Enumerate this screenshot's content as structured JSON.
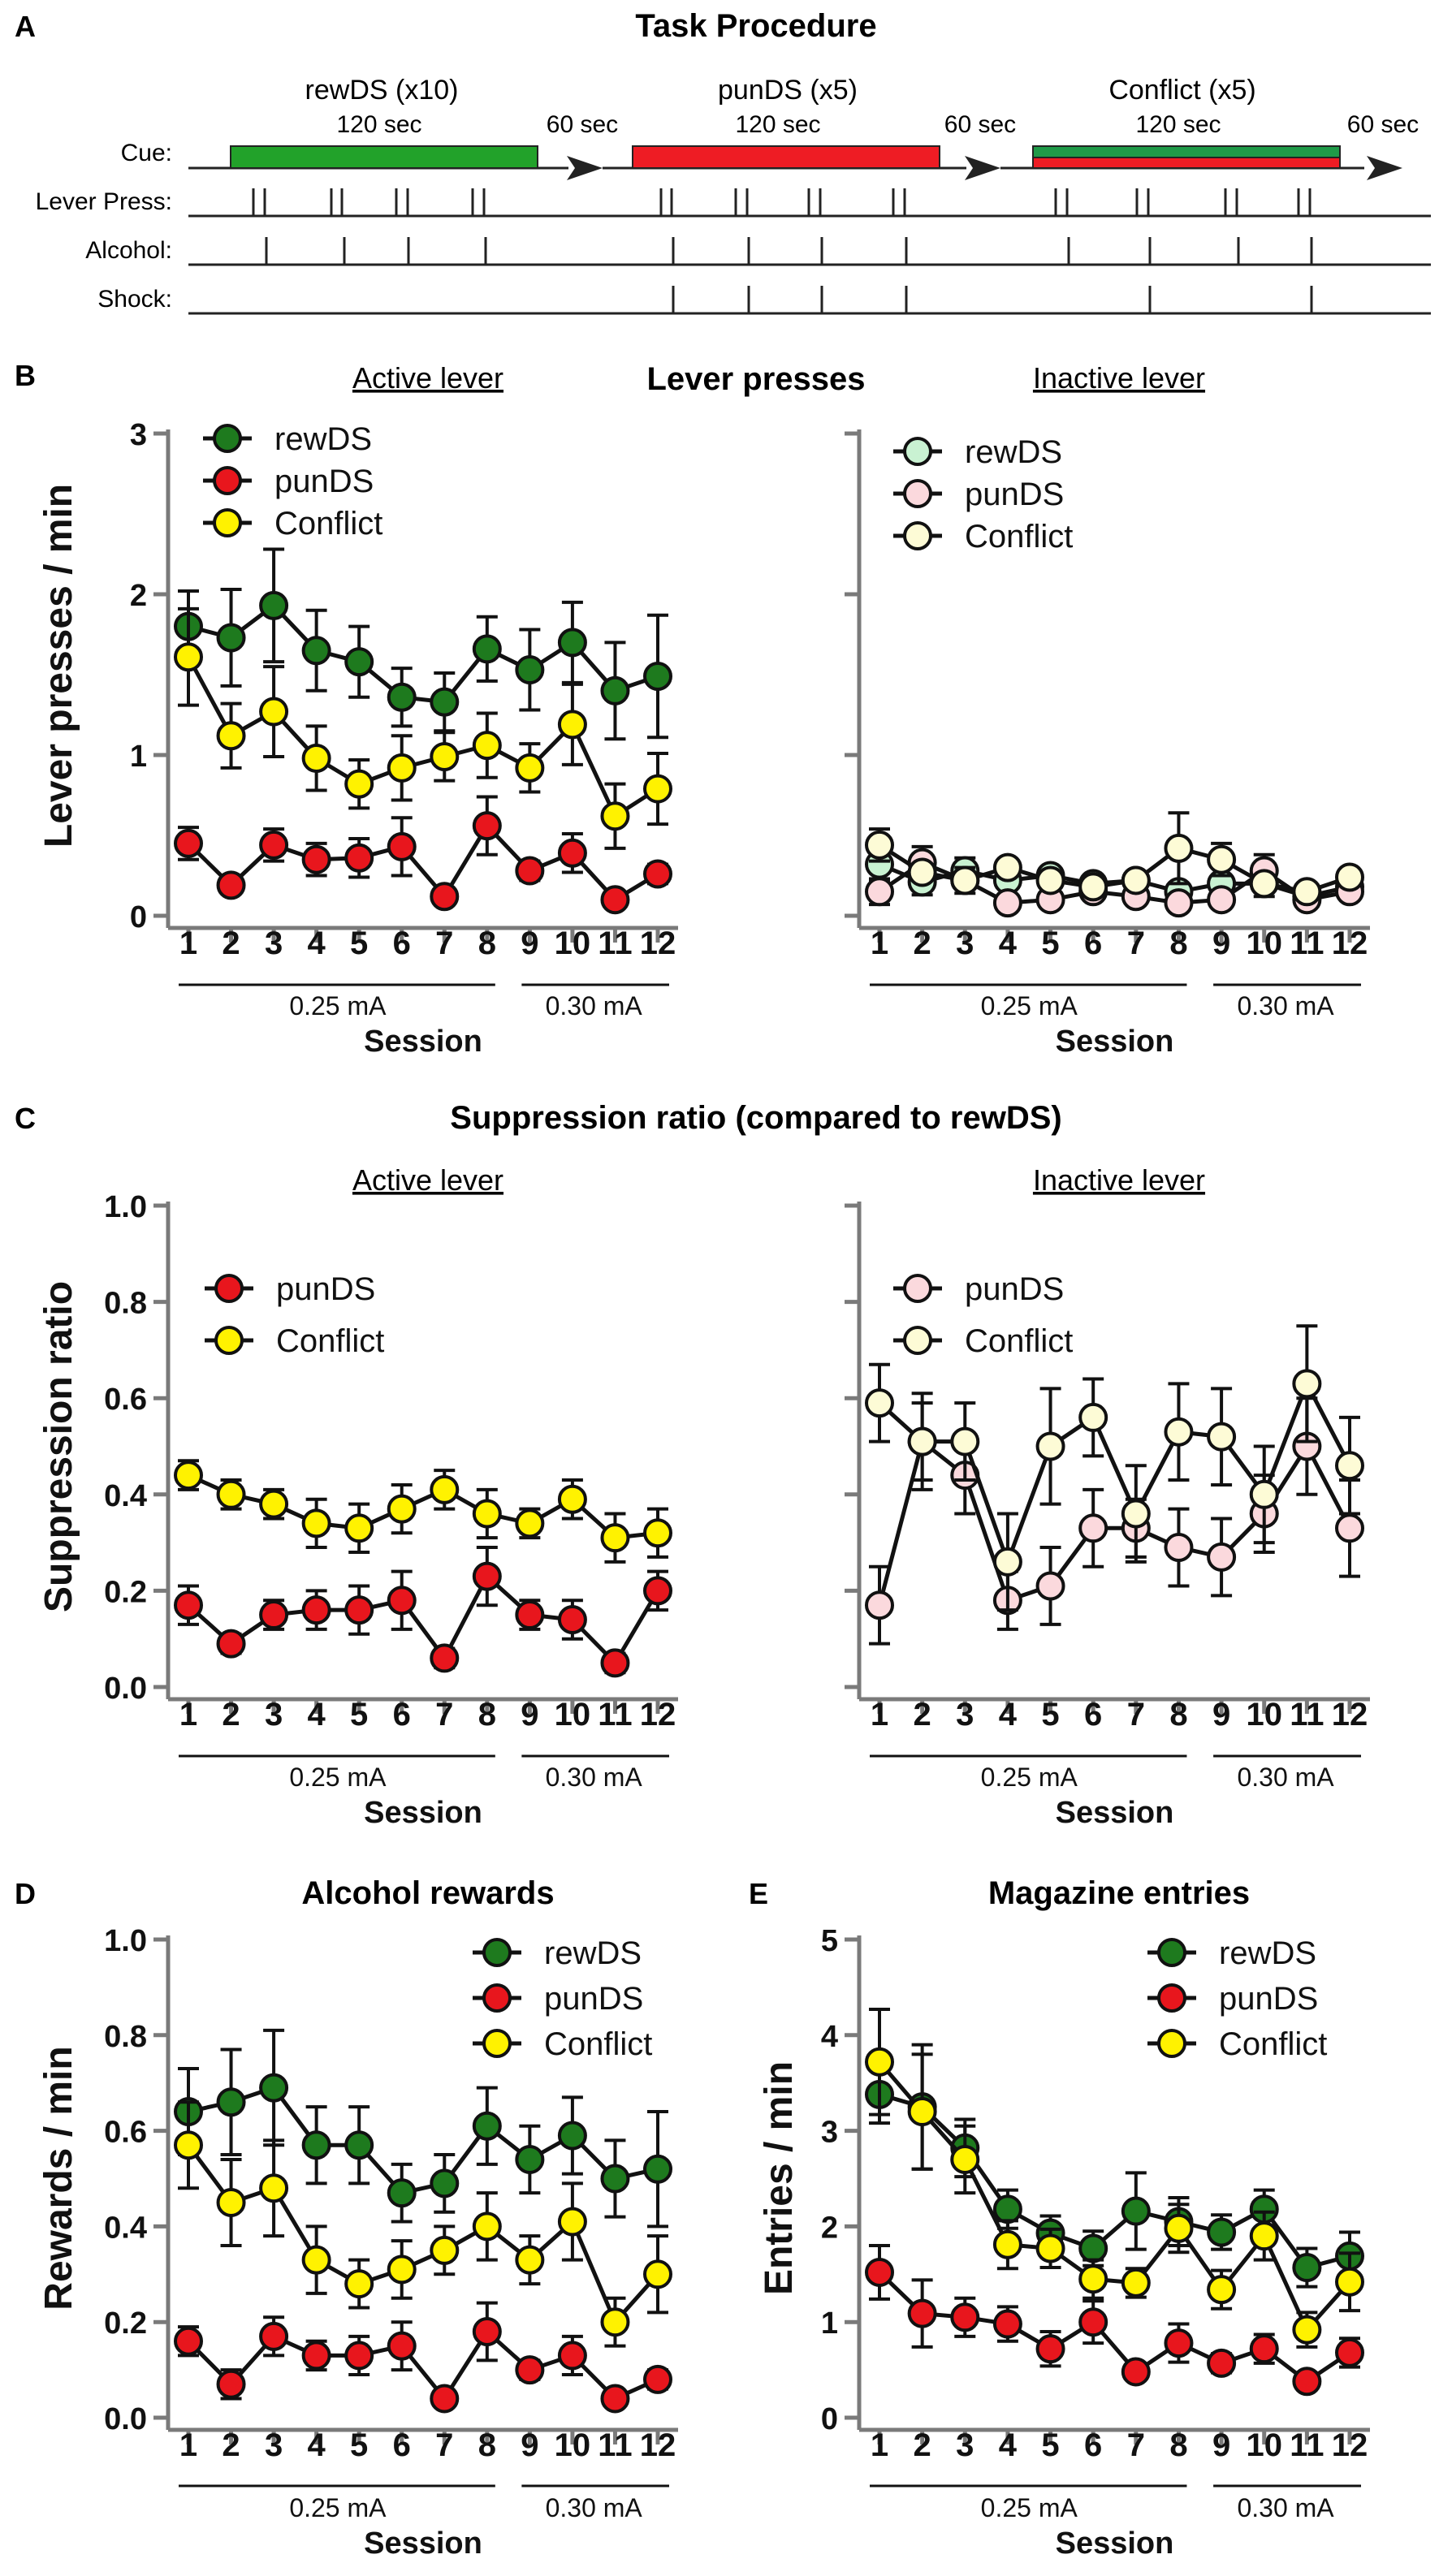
{
  "panels": {
    "A": {
      "letter": "A",
      "title": "Task Procedure",
      "blocks": [
        {
          "name": "rewDS (x10)",
          "duration": "120 sec",
          "color": "#22a22a"
        },
        {
          "name": "punDS (x5)",
          "duration": "120 sec",
          "color": "#ee1c24"
        },
        {
          "name": "Conflict (x5)",
          "duration": "120 sec",
          "color": "#1f9a48",
          "color2": "#ee1c24"
        }
      ],
      "iti": "60 sec",
      "rows": [
        "Cue:",
        "Lever Press:",
        "Alcohol:",
        "Shock:"
      ]
    },
    "B": {
      "letter": "B",
      "title": "Lever presses",
      "left_subtitle": "Active lever",
      "right_subtitle": "Inactive lever"
    },
    "C": {
      "letter": "C",
      "title": "Suppression ratio (compared to rewDS)",
      "left_subtitle": "Active lever",
      "right_subtitle": "Inactive lever"
    },
    "D": {
      "letter": "D",
      "title": "Alcohol rewards"
    },
    "E": {
      "letter": "E",
      "title": "Magazine entries"
    }
  },
  "colors": {
    "rewDS": "#1e7a1e",
    "punDS": "#e8161d",
    "Conflict": "#fff200",
    "rewDS_light": "#c9f2d2",
    "punDS_light": "#fbd9dd",
    "Conflict_light": "#fdfbd6"
  },
  "shared": {
    "sessions": [
      "1",
      "2",
      "3",
      "4",
      "5",
      "6",
      "7",
      "8",
      "9",
      "10",
      "11",
      "12"
    ],
    "xlabel": "Session",
    "group1": "0.25 mA",
    "group2": "0.30 mA"
  },
  "chart_data": [
    {
      "id": "B_active",
      "type": "line",
      "title": "Lever presses",
      "subtitle": "Active lever",
      "ylabel": "Lever presses / min",
      "xlabel": "Session",
      "ylim": [
        0,
        3
      ],
      "yticks": [
        "0",
        "1",
        "2",
        "3"
      ],
      "legend_position": "top-left",
      "series": [
        {
          "name": "rewDS",
          "values": [
            1.8,
            1.73,
            1.93,
            1.65,
            1.58,
            1.36,
            1.33,
            1.66,
            1.53,
            1.7,
            1.4,
            1.49
          ],
          "err": [
            0.22,
            0.3,
            0.35,
            0.25,
            0.22,
            0.18,
            0.18,
            0.2,
            0.25,
            0.25,
            0.3,
            0.38
          ]
        },
        {
          "name": "punDS",
          "values": [
            0.45,
            0.19,
            0.44,
            0.35,
            0.36,
            0.43,
            0.12,
            0.56,
            0.28,
            0.39,
            0.1,
            0.26
          ],
          "err": [
            0.1,
            0.03,
            0.1,
            0.1,
            0.12,
            0.18,
            0.03,
            0.18,
            0.06,
            0.12,
            0.03,
            0.06
          ]
        },
        {
          "name": "Conflict",
          "values": [
            1.61,
            1.12,
            1.27,
            0.98,
            0.82,
            0.92,
            0.99,
            1.06,
            0.92,
            1.19,
            0.62,
            0.79
          ],
          "err": [
            0.3,
            0.2,
            0.28,
            0.2,
            0.15,
            0.2,
            0.15,
            0.2,
            0.15,
            0.25,
            0.2,
            0.22
          ]
        }
      ]
    },
    {
      "id": "B_inactive",
      "type": "line",
      "title": "Lever presses",
      "subtitle": "Inactive lever",
      "xlabel": "Session",
      "ylim": [
        0,
        3
      ],
      "yticks": [],
      "legend_position": "top-left",
      "series": [
        {
          "name": "rewDS",
          "values": [
            0.32,
            0.21,
            0.28,
            0.22,
            0.25,
            0.2,
            0.22,
            0.15,
            0.2,
            0.2,
            0.12,
            0.18
          ],
          "err": [
            0.1,
            0.08,
            0.08,
            0.05,
            0.05,
            0.05,
            0.05,
            0.05,
            0.05,
            0.08,
            0.05,
            0.05
          ]
        },
        {
          "name": "punDS",
          "values": [
            0.15,
            0.33,
            0.22,
            0.08,
            0.1,
            0.15,
            0.12,
            0.08,
            0.1,
            0.28,
            0.1,
            0.15
          ],
          "err": [
            0.08,
            0.1,
            0.08,
            0.05,
            0.05,
            0.05,
            0.05,
            0.03,
            0.05,
            0.1,
            0.05,
            0.05
          ]
        },
        {
          "name": "Conflict",
          "values": [
            0.44,
            0.27,
            0.22,
            0.3,
            0.22,
            0.18,
            0.22,
            0.42,
            0.35,
            0.2,
            0.15,
            0.24
          ],
          "err": [
            0.1,
            0.05,
            0.05,
            0.05,
            0.05,
            0.05,
            0.05,
            0.22,
            0.1,
            0.05,
            0.05,
            0.05
          ]
        }
      ]
    },
    {
      "id": "C_active",
      "type": "line",
      "title": "Suppression ratio (compared to rewDS)",
      "subtitle": "Active lever",
      "ylabel": "Suppression ratio",
      "xlabel": "Session",
      "ylim": [
        0,
        1
      ],
      "yticks": [
        "0.0",
        "0.2",
        "0.4",
        "0.6",
        "0.8",
        "1.0"
      ],
      "legend_position": "top-left",
      "series": [
        {
          "name": "punDS",
          "values": [
            0.17,
            0.09,
            0.15,
            0.16,
            0.16,
            0.18,
            0.06,
            0.23,
            0.15,
            0.14,
            0.05,
            0.2
          ],
          "err": [
            0.04,
            0.02,
            0.03,
            0.04,
            0.05,
            0.06,
            0.02,
            0.06,
            0.03,
            0.04,
            0.02,
            0.04
          ]
        },
        {
          "name": "Conflict",
          "values": [
            0.44,
            0.4,
            0.38,
            0.34,
            0.33,
            0.37,
            0.41,
            0.36,
            0.34,
            0.39,
            0.31,
            0.32
          ],
          "err": [
            0.03,
            0.03,
            0.03,
            0.05,
            0.05,
            0.05,
            0.04,
            0.05,
            0.03,
            0.04,
            0.05,
            0.05
          ]
        }
      ]
    },
    {
      "id": "C_inactive",
      "type": "line",
      "title": "Suppression ratio (compared to rewDS)",
      "subtitle": "Inactive lever",
      "xlabel": "Session",
      "ylim": [
        0,
        1
      ],
      "yticks": [],
      "legend_position": "top-left",
      "series": [
        {
          "name": "punDS",
          "values": [
            0.17,
            0.51,
            0.44,
            0.18,
            0.21,
            0.33,
            0.33,
            0.29,
            0.27,
            0.36,
            0.5,
            0.33
          ],
          "err": [
            0.08,
            0.08,
            0.08,
            0.06,
            0.08,
            0.08,
            0.06,
            0.08,
            0.08,
            0.08,
            0.1,
            0.1
          ]
        },
        {
          "name": "Conflict",
          "values": [
            0.59,
            0.51,
            0.51,
            0.26,
            0.5,
            0.56,
            0.36,
            0.53,
            0.52,
            0.4,
            0.63,
            0.46
          ],
          "err": [
            0.08,
            0.1,
            0.08,
            0.1,
            0.12,
            0.08,
            0.1,
            0.1,
            0.1,
            0.1,
            0.12,
            0.1
          ]
        }
      ]
    },
    {
      "id": "D",
      "type": "line",
      "title": "Alcohol rewards",
      "ylabel": "Rewards / min",
      "xlabel": "Session",
      "ylim": [
        0,
        1
      ],
      "yticks": [
        "0.0",
        "0.2",
        "0.4",
        "0.6",
        "0.8",
        "1.0"
      ],
      "legend_position": "top-right",
      "series": [
        {
          "name": "rewDS",
          "values": [
            0.64,
            0.66,
            0.69,
            0.57,
            0.57,
            0.47,
            0.49,
            0.61,
            0.54,
            0.59,
            0.5,
            0.52
          ],
          "err": [
            0.09,
            0.11,
            0.12,
            0.08,
            0.08,
            0.06,
            0.06,
            0.08,
            0.07,
            0.08,
            0.08,
            0.12
          ]
        },
        {
          "name": "punDS",
          "values": [
            0.16,
            0.07,
            0.17,
            0.13,
            0.13,
            0.15,
            0.04,
            0.18,
            0.1,
            0.13,
            0.04,
            0.08
          ],
          "err": [
            0.03,
            0.03,
            0.04,
            0.03,
            0.04,
            0.05,
            0.01,
            0.06,
            0.02,
            0.04,
            0.01,
            0.02
          ]
        },
        {
          "name": "Conflict",
          "values": [
            0.57,
            0.45,
            0.48,
            0.33,
            0.28,
            0.31,
            0.35,
            0.4,
            0.33,
            0.41,
            0.2,
            0.3
          ],
          "err": [
            0.09,
            0.09,
            0.1,
            0.07,
            0.05,
            0.06,
            0.05,
            0.07,
            0.05,
            0.08,
            0.05,
            0.08
          ]
        }
      ]
    },
    {
      "id": "E",
      "type": "line",
      "title": "Magazine entries",
      "ylabel": "Entries / min",
      "xlabel": "Session",
      "ylim": [
        0,
        5
      ],
      "yticks": [
        "0",
        "1",
        "2",
        "3",
        "4",
        "5"
      ],
      "legend_position": "top-right",
      "series": [
        {
          "name": "rewDS",
          "values": [
            3.38,
            3.25,
            2.82,
            2.18,
            1.93,
            1.77,
            2.16,
            2.05,
            1.94,
            2.18,
            1.57,
            1.69
          ],
          "err": [
            0.3,
            0.65,
            0.3,
            0.2,
            0.18,
            0.18,
            0.4,
            0.25,
            0.18,
            0.2,
            0.2,
            0.25
          ]
        },
        {
          "name": "punDS",
          "values": [
            1.52,
            1.09,
            1.05,
            0.98,
            0.72,
            1.0,
            0.48,
            0.78,
            0.57,
            0.72,
            0.38,
            0.68
          ],
          "err": [
            0.28,
            0.35,
            0.2,
            0.18,
            0.18,
            0.22,
            0.08,
            0.2,
            0.1,
            0.15,
            0.08,
            0.15
          ]
        },
        {
          "name": "Conflict",
          "values": [
            3.72,
            3.2,
            2.7,
            1.81,
            1.77,
            1.45,
            1.41,
            1.98,
            1.34,
            1.9,
            0.92,
            1.42
          ],
          "err": [
            0.55,
            0.6,
            0.35,
            0.25,
            0.2,
            0.2,
            0.15,
            0.25,
            0.2,
            0.25,
            0.18,
            0.3
          ]
        }
      ]
    }
  ]
}
